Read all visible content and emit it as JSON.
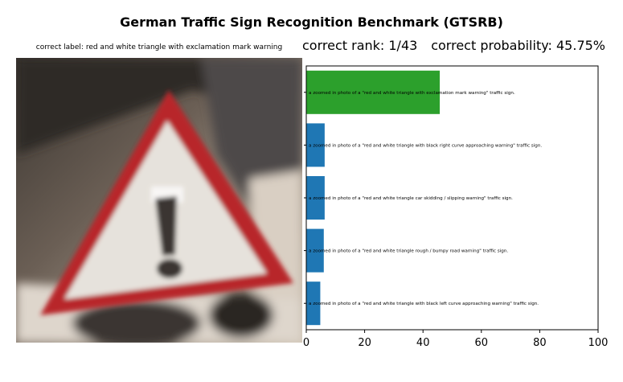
{
  "title": "German Traffic Sign Recognition Benchmark (GTSRB)",
  "image_caption": "correct label: red and white triangle with exclamation mark warning",
  "rank_text": "correct rank: 1/43",
  "probability_text": "correct probability: 45.75%",
  "photo": {
    "description_icon": "warning-triangle-exclamation-photo",
    "colors": {
      "red": "#b8282a",
      "white": "#e6e2dc",
      "roof": "#4e4a48",
      "wall": "#d6cbbd",
      "dark": "#2a2522"
    }
  },
  "chart_data": {
    "type": "bar",
    "orientation": "horizontal",
    "categories": [
      "a zoomed in photo of a \"red and white triangle with exclamation mark warning\" traffic sign.",
      "a zoomed in photo of a \"red and white triangle with black right curve approaching warning\" traffic sign.",
      "a zoomed in photo of a \"red and white triangle car skidding / slipping warning\" traffic sign.",
      "a zoomed in photo of a \"red and white triangle rough / bumpy road warning\" traffic sign.",
      "a zoomed in photo of a \"red and white triangle with black left curve approaching warning\" traffic sign."
    ],
    "values": [
      45.75,
      6.3,
      6.3,
      6.0,
      4.8
    ],
    "bar_colors": [
      "#2ca02c",
      "#1f77b4",
      "#1f77b4",
      "#1f77b4",
      "#1f77b4"
    ],
    "xlim": [
      0,
      100
    ],
    "xticks": [
      0,
      20,
      40,
      60,
      80,
      100
    ]
  }
}
